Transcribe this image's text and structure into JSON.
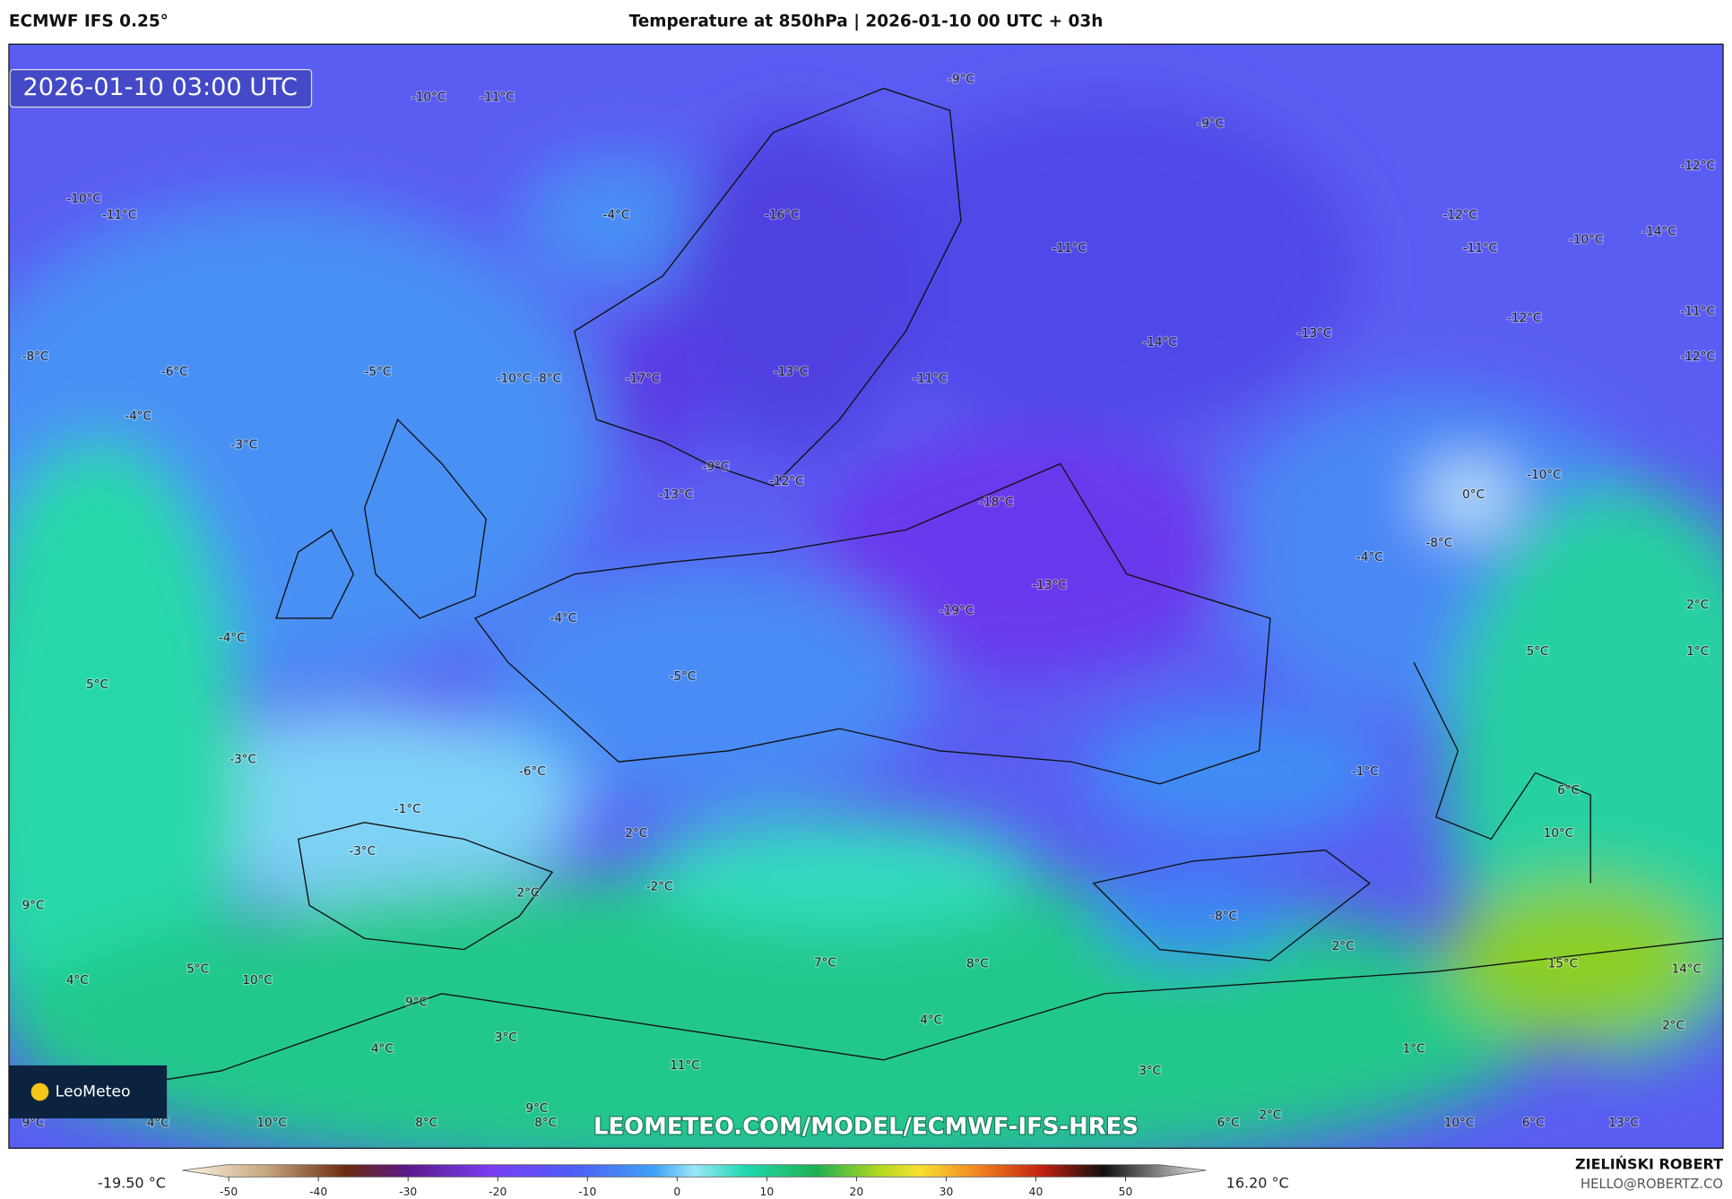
{
  "header": {
    "model": "ECMWF IFS 0.25°",
    "title": "Temperature at 850hPa | 2026-01-10 00 UTC + 03h"
  },
  "map": {
    "timestamp": "2026-01-10 03:00 UTC",
    "labels": [
      "-10°C",
      "-11°C",
      "-9°C",
      "-9°C",
      "-12°C",
      "-10°C",
      "-11°C",
      "-4°C",
      "-16°C",
      "-11°C",
      "-12°C",
      "-11°C",
      "-10°C",
      "-14°C",
      "-14°C",
      "-13°C",
      "-12°C",
      "-11°C",
      "-8°C",
      "-6°C",
      "-5°C",
      "-10°C",
      "-8°C",
      "-17°C",
      "-13°C",
      "-11°C",
      "-12°C",
      "-4°C",
      "-3°C",
      "-9°C",
      "-12°C",
      "-13°C",
      "-18°C",
      "0°C",
      "-10°C",
      "-8°C",
      "-4°C",
      "-13°C",
      "-19°C",
      "-4°C",
      "-4°C",
      "2°C",
      "5°C",
      "1°C",
      "5°C",
      "-5°C",
      "-3°C",
      "-6°C",
      "-1°C",
      "6°C",
      "-1°C",
      "2°C",
      "10°C",
      "-3°C",
      "-2°C",
      "2°C",
      "9°C",
      "-8°C",
      "2°C",
      "7°C",
      "8°C",
      "15°C",
      "14°C",
      "5°C",
      "4°C",
      "10°C",
      "9°C",
      "4°C",
      "2°C",
      "3°C",
      "4°C",
      "1°C",
      "3°C",
      "11°C",
      "9°C",
      "9°C",
      "4°C",
      "10°C",
      "8°C",
      "8°C",
      "6°C",
      "2°C",
      "10°C",
      "6°C",
      "13°C"
    ],
    "logo": "LeoMeteo",
    "watermark": "LEOMETEO.COM/MODEL/ECMWF-IFS-HRES"
  },
  "colorbar": {
    "min_label": "-19.50 °C",
    "max_label": "16.20 °C",
    "ticks": [
      -50,
      -40,
      -30,
      -20,
      -10,
      0,
      10,
      20,
      30,
      40,
      50
    ]
  },
  "footer": {
    "author": "ZIELIŃSKI ROBERT",
    "contact": "HELLO@ROBERTZ.CO"
  }
}
